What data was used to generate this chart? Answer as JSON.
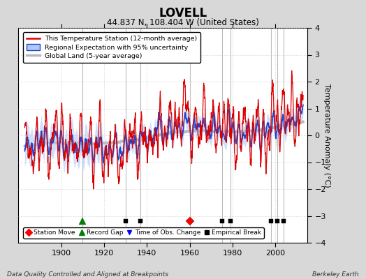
{
  "title": "LOVELL",
  "subtitle": "44.837 N, 108.404 W (United States)",
  "ylabel": "Temperature Anomaly (°C)",
  "footer_left": "Data Quality Controlled and Aligned at Breakpoints",
  "footer_right": "Berkeley Earth",
  "xlim": [
    1880,
    2015
  ],
  "ylim": [
    -4,
    4
  ],
  "yticks": [
    -4,
    -3,
    -2,
    -1,
    0,
    1,
    2,
    3,
    4
  ],
  "xticks": [
    1900,
    1920,
    1940,
    1960,
    1980,
    2000
  ],
  "bg_color": "#d8d8d8",
  "plot_bg_color": "#ffffff",
  "station_move_years": [
    1960
  ],
  "record_gap_years": [
    1910
  ],
  "time_obs_change_years": [],
  "empirical_break_years": [
    1930,
    1937,
    1975,
    1979,
    1998,
    2001,
    2004
  ],
  "all_break_years": [
    1910,
    1930,
    1937,
    1960,
    1975,
    1979,
    1998,
    2001,
    2004
  ],
  "seed": 42
}
